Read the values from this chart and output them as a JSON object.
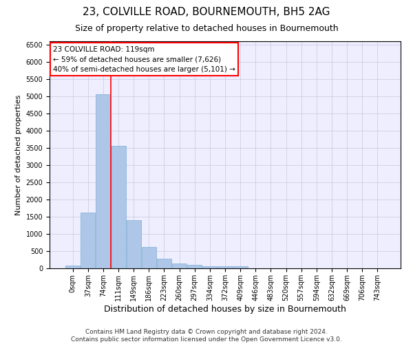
{
  "title": "23, COLVILLE ROAD, BOURNEMOUTH, BH5 2AG",
  "subtitle": "Size of property relative to detached houses in Bournemouth",
  "xlabel": "Distribution of detached houses by size in Bournemouth",
  "ylabel": "Number of detached properties",
  "footer_line1": "Contains HM Land Registry data © Crown copyright and database right 2024.",
  "footer_line2": "Contains public sector information licensed under the Open Government Licence v3.0.",
  "bar_labels": [
    "0sqm",
    "37sqm",
    "74sqm",
    "111sqm",
    "149sqm",
    "186sqm",
    "223sqm",
    "260sqm",
    "297sqm",
    "334sqm",
    "372sqm",
    "409sqm",
    "446sqm",
    "483sqm",
    "520sqm",
    "557sqm",
    "594sqm",
    "632sqm",
    "669sqm",
    "706sqm",
    "743sqm"
  ],
  "bar_values": [
    75,
    1620,
    5060,
    3570,
    1400,
    620,
    290,
    145,
    105,
    70,
    55,
    65,
    0,
    0,
    0,
    0,
    0,
    0,
    0,
    0,
    0
  ],
  "bar_color": "#aec6e8",
  "bar_edge_color": "#7bafd4",
  "ylim": [
    0,
    6600
  ],
  "yticks": [
    0,
    500,
    1000,
    1500,
    2000,
    2500,
    3000,
    3500,
    4000,
    4500,
    5000,
    5500,
    6000,
    6500
  ],
  "vline_color": "red",
  "vline_x": 2.5,
  "annotation_line1": "23 COLVILLE ROAD: 119sqm",
  "annotation_line2": "← 59% of detached houses are smaller (7,626)",
  "annotation_line3": "40% of semi-detached houses are larger (5,101) →",
  "background_color": "#eeeeff",
  "grid_color": "#c8c8dc",
  "title_fontsize": 11,
  "subtitle_fontsize": 9,
  "ylabel_fontsize": 8,
  "xlabel_fontsize": 9,
  "tick_fontsize": 7,
  "annotation_fontsize": 7.5,
  "footer_fontsize": 6.5
}
